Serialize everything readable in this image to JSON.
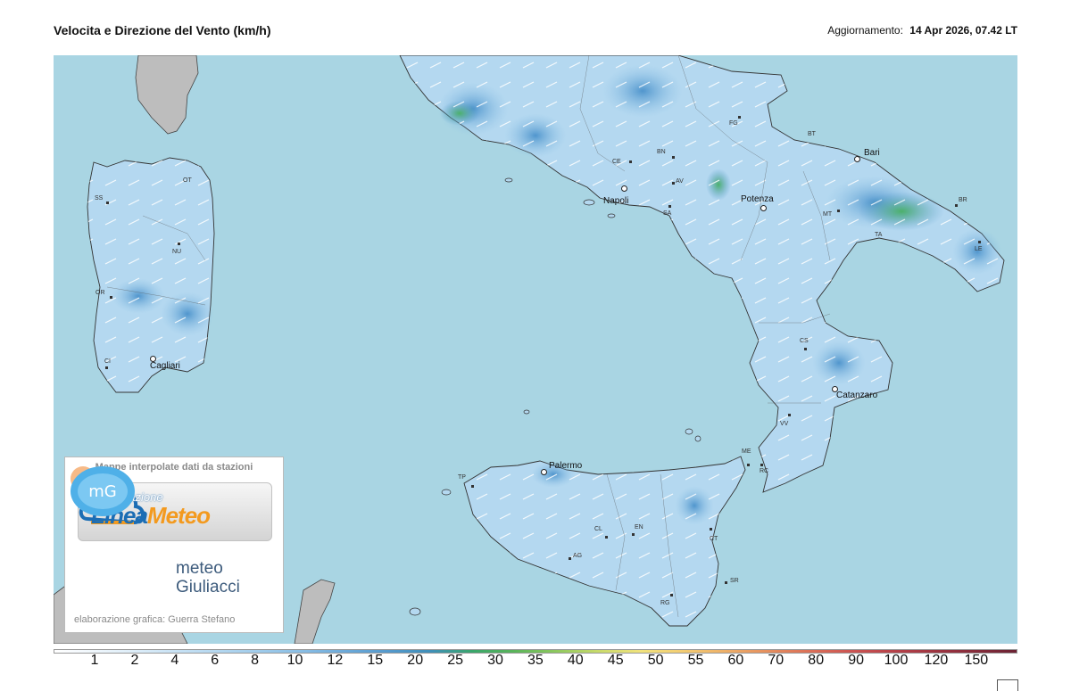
{
  "header": {
    "title": "Velocita e Direzione del Vento  (km/h)",
    "updated_label": "Aggiornamento:",
    "updated_value": "14 Apr 2026, 07.42 LT"
  },
  "map": {
    "province_codes": [
      "OT",
      "SS",
      "NU",
      "OR",
      "CI",
      "FG",
      "BT",
      "CE",
      "BN",
      "AV",
      "SA",
      "MT",
      "TA",
      "BR",
      "LE",
      "CS",
      "VV",
      "RC",
      "ME",
      "TP",
      "CT",
      "CL",
      "EN",
      "AG",
      "SR",
      "RG"
    ],
    "cities": [
      "Cagliari",
      "Napoli",
      "Potenza",
      "Bari",
      "Catanzaro",
      "Palermo"
    ],
    "colors": {
      "sea": "#a9d5e3",
      "land_other": "#bdbdbd",
      "wind_low": "#d8ebf7",
      "wind_mid": "#8fc3e6",
      "wind_high": "#3f8ac7",
      "wind_strong": "#3aaa53"
    }
  },
  "legend_box": {
    "header": "Mappe interpolate dati da stazioni",
    "assoc": "Associazione",
    "brand_part1": "Linea",
    "brand_part2": "Meteo",
    "mg_text_line1": "meteo",
    "mg_text_line2": "Giuliacci",
    "mg_icon_text": "mG",
    "credit": "elaborazione grafica: Guerra Stefano"
  },
  "scale": {
    "values": [
      "1",
      "2",
      "4",
      "6",
      "8",
      "10",
      "12",
      "15",
      "20",
      "25",
      "30",
      "35",
      "40",
      "45",
      "50",
      "55",
      "60",
      "70",
      "80",
      "90",
      "100",
      "120",
      "150"
    ],
    "colors": [
      "#ffffff",
      "#eef6fc",
      "#dbecf8",
      "#c6e1f4",
      "#b2d6ef",
      "#9dcaea",
      "#86bce4",
      "#6ba9d9",
      "#5499cc",
      "#3f8fb9",
      "#3aa66a",
      "#5ab45a",
      "#8ec85e",
      "#c8da6a",
      "#f1e37c",
      "#f3cd72",
      "#eeb068",
      "#e6905e",
      "#dc7158",
      "#cd5552",
      "#b84249",
      "#a03541",
      "#862b3a",
      "#6b2233"
    ]
  }
}
